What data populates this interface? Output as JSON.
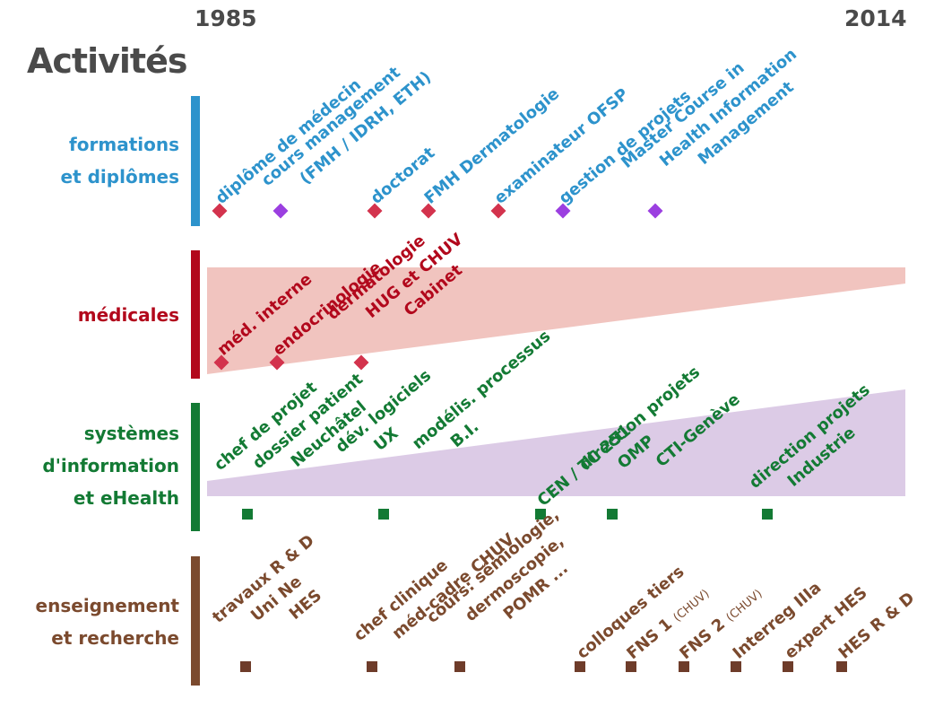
{
  "title": "Activités",
  "years": {
    "start": "1985",
    "end": "2014"
  },
  "colors": {
    "formations": "#2d93cc",
    "medicales": "#b2081c",
    "systemes": "#137a34",
    "enseignement": "#7b4a2e",
    "marker_red": "#d3334d",
    "marker_purple": "#9b3fe0",
    "band_pink": "#f1c4bf",
    "band_lavender": "#dccbe6"
  },
  "categories": [
    {
      "id": "formations",
      "lines": [
        "formations",
        "et diplômes"
      ]
    },
    {
      "id": "medicales",
      "lines": [
        "médicales"
      ]
    },
    {
      "id": "systemes",
      "lines": [
        "systèmes",
        "d'information",
        "et eHealth"
      ]
    },
    {
      "id": "enseignement",
      "lines": [
        "enseignement",
        "et recherche"
      ]
    }
  ],
  "formations": [
    {
      "lines": [
        "diplôme de médecin"
      ],
      "marker": "red"
    },
    {
      "lines": [
        "cours management",
        "(FMH / IDRH, ETH)"
      ],
      "marker": "purple"
    },
    {
      "lines": [
        "doctorat"
      ],
      "marker": "red"
    },
    {
      "lines": [
        "FMH Dermatologie"
      ],
      "marker": "red"
    },
    {
      "lines": [
        "examinateur OFSP"
      ],
      "marker": "red"
    },
    {
      "lines": [
        "gestion de projets"
      ],
      "marker": "purple"
    },
    {
      "lines": [
        "Master Course in",
        "Health Information",
        "Management"
      ],
      "marker": "purple"
    }
  ],
  "medicales": [
    {
      "lines": [
        "méd. interne"
      ]
    },
    {
      "lines": [
        "endocrinologie"
      ]
    },
    {
      "lines": [
        "dermatologie",
        "HUG et CHUV",
        "Cabinet"
      ]
    }
  ],
  "systemes": [
    {
      "lines": [
        "chef de projet",
        "dossier patient",
        "Neuchâtel"
      ]
    },
    {
      "lines": [
        "dév. logiciels",
        "UX",
        "modélis. processus",
        "B.I."
      ]
    },
    {
      "lines": [
        "CEN / TC 251"
      ]
    },
    {
      "lines": [
        "direction projets",
        "OMP",
        "CTI-Genève"
      ]
    },
    {
      "lines": [
        "direction projets",
        "Industrie"
      ]
    }
  ],
  "enseignement": [
    {
      "lines": [
        "travaux R & D",
        "Uni Ne",
        "HES"
      ]
    },
    {
      "lines": [
        "chef clinique",
        "méd-cadre CHUV"
      ]
    },
    {
      "lines": [
        "cours: sémiologie,",
        "dermoscopie,",
        "POMR ..."
      ]
    },
    {
      "lines": [
        "colloques tiers"
      ]
    },
    {
      "main": "FNS 1",
      "sup": "(CHUV)"
    },
    {
      "main": "FNS 2",
      "sup": "(CHUV)"
    },
    {
      "lines": [
        "Interreg IIIa"
      ]
    },
    {
      "lines": [
        "expert HES"
      ]
    },
    {
      "lines": [
        "HES R & D"
      ]
    }
  ]
}
